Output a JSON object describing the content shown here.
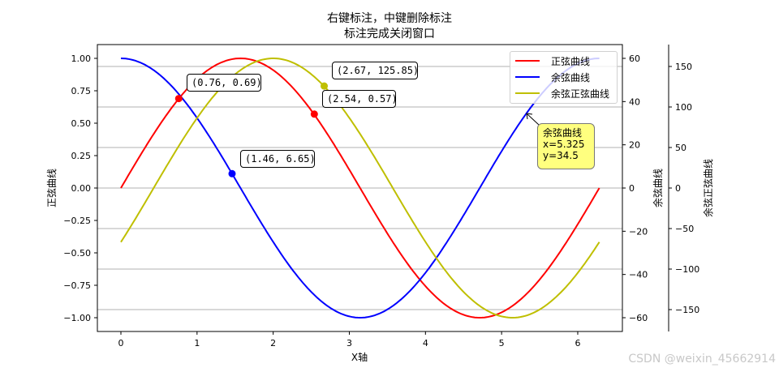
{
  "title": {
    "line1": "右键标注，中键删除标注",
    "line2": "标注完成关闭窗口"
  },
  "legend": {
    "items": [
      {
        "label": "正弦曲线",
        "color": "#ff0000"
      },
      {
        "label": "余弦曲线",
        "color": "#0000ff"
      },
      {
        "label": "余弦正弦曲线",
        "color": "#bfbf00"
      }
    ]
  },
  "annotations": [
    {
      "text": "(0.76, 0.69)"
    },
    {
      "text": "(2.67, 125.85)"
    },
    {
      "text": "(2.54, 0.57)"
    },
    {
      "text": "(1.46, 6.65)"
    }
  ],
  "tooltip": {
    "title": "余弦曲线",
    "x_text": "x=5.325",
    "y_text": "y=34.5"
  },
  "watermark": "CSDN @weixin_45662914",
  "chart_data": {
    "type": "line",
    "title": "右键标注，中键删除标注\n标注完成关闭窗口",
    "xlabel": "X轴",
    "ylabel": "正弦曲线",
    "ylabel_right": "余弦曲线",
    "ylabel_right2": "余弦正弦曲线",
    "xlim": [
      -0.314,
      6.597
    ],
    "ylim": [
      -1.1,
      1.1
    ],
    "ylim_right": [
      -66,
      66
    ],
    "ylim_right2": [
      -177,
      177
    ],
    "x_ticks": [
      0,
      1,
      2,
      3,
      4,
      5,
      6
    ],
    "y_ticks": [
      "1.00",
      "0.75",
      "0.50",
      "0.25",
      "0.00",
      "-0.25",
      "-0.50",
      "-0.75",
      "-1.00"
    ],
    "y_ticks_right": [
      "60",
      "40",
      "20",
      "0",
      "-20",
      "-40",
      "-60"
    ],
    "y_ticks_right2": [
      "150",
      "100",
      "50",
      "0",
      "-50",
      "-100",
      "-150"
    ],
    "grid": "horizontal, aligned to right2 axis ticks",
    "legend_position": "upper right",
    "series": [
      {
        "name": "正弦曲线",
        "axis": "left",
        "formula": "sin(x)",
        "amplitude": 1,
        "phase": 0,
        "color": "#ff0000",
        "x": [
          0,
          0.785,
          1.571,
          2.356,
          3.142,
          3.927,
          4.712,
          5.498,
          6.283
        ],
        "values": [
          0,
          0.707,
          1,
          0.707,
          0,
          -0.707,
          -1,
          -0.707,
          0
        ]
      },
      {
        "name": "余弦曲线",
        "axis": "right",
        "formula": "60*cos(x)",
        "amplitude": 60,
        "phase": 1.5708,
        "color": "#0000ff",
        "x": [
          0,
          0.785,
          1.571,
          2.356,
          3.142,
          3.927,
          4.712,
          5.498,
          6.283
        ],
        "values": [
          60,
          42.4,
          0,
          -42.4,
          -60,
          -42.4,
          0,
          42.4,
          60
        ]
      },
      {
        "name": "余弦正弦曲线",
        "axis": "right2",
        "formula": "160*sin(x-0.43)",
        "amplitude": 160,
        "phase": -0.43,
        "color": "#bfbf00",
        "x": [
          0,
          0.785,
          1.571,
          2.356,
          3.142,
          3.927,
          4.712,
          5.498,
          6.283
        ],
        "values": [
          -66.7,
          56.7,
          145.5,
          150.4,
          66.7,
          -56.7,
          -145.5,
          -150.4,
          -66.7
        ]
      }
    ],
    "marked_points": [
      {
        "series": "正弦曲线",
        "x": 0.76,
        "y": 0.69
      },
      {
        "series": "余弦正弦曲线",
        "x": 2.67,
        "y": 125.85
      },
      {
        "series": "正弦曲线",
        "x": 2.54,
        "y": 0.57
      },
      {
        "series": "余弦曲线",
        "x": 1.46,
        "y": 6.65
      }
    ],
    "hover_annotation": {
      "series": "余弦曲线",
      "x": 5.325,
      "y": 34.5
    }
  }
}
